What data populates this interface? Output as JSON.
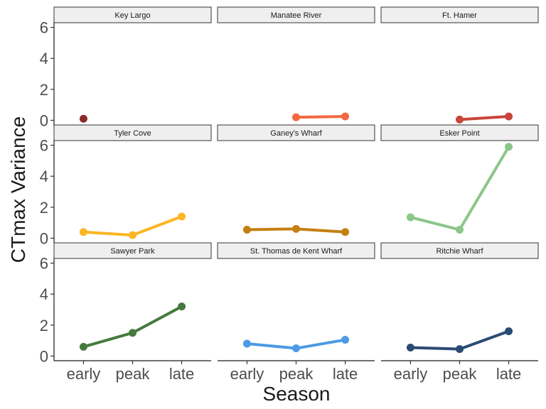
{
  "chart_data": {
    "type": "line",
    "xlabel": "Season",
    "ylabel": "CTmax Variance",
    "categories": [
      "early",
      "peak",
      "late"
    ],
    "ylim": [
      0,
      6
    ],
    "yticks": [
      "0",
      "2",
      "4",
      "6"
    ],
    "grid": false,
    "legend": "none",
    "facets": [
      {
        "name": "Key Largo",
        "color": "#8b2a2a",
        "values": [
          0.1,
          null,
          null
        ]
      },
      {
        "name": "Manatee River",
        "color": "#f4683f",
        "values": [
          null,
          0.2,
          0.25
        ]
      },
      {
        "name": "Ft. Hamer",
        "color": "#c9443a",
        "values": [
          null,
          0.05,
          0.25
        ]
      },
      {
        "name": "Tyler Cove",
        "color": "#fbb623",
        "values": [
          0.4,
          0.2,
          1.4
        ]
      },
      {
        "name": "Ganey's Wharf",
        "color": "#c47f12",
        "values": [
          0.55,
          0.6,
          0.4
        ]
      },
      {
        "name": "Esker Point",
        "color": "#8cc68a",
        "values": [
          1.35,
          0.55,
          5.9
        ]
      },
      {
        "name": "Sawyer Park",
        "color": "#457a3e",
        "values": [
          0.6,
          1.5,
          3.2
        ]
      },
      {
        "name": "St. Thomas de Kent Wharf",
        "color": "#4b9be5",
        "values": [
          0.8,
          0.5,
          1.05
        ]
      },
      {
        "name": "Ritchie Wharf",
        "color": "#2a4b73",
        "values": [
          0.55,
          0.45,
          1.6
        ]
      }
    ]
  }
}
